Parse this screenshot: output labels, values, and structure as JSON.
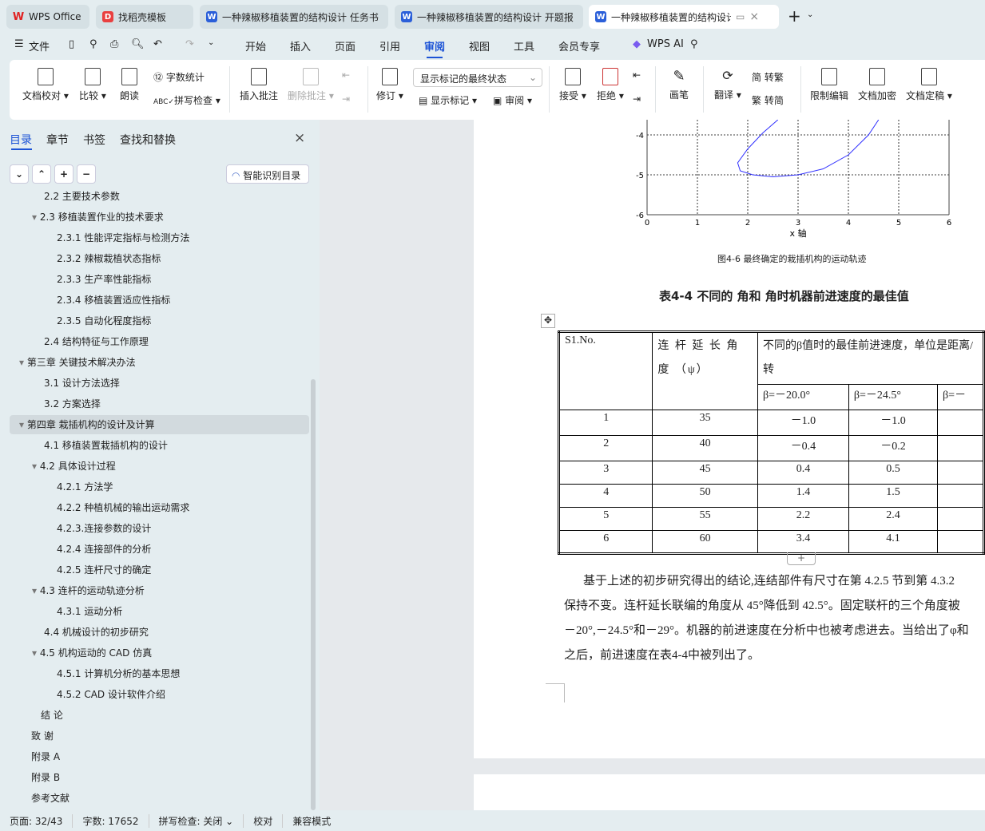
{
  "tabs": [
    {
      "label": "WPS Office",
      "icon": "wps-logo-icon",
      "color": "#e02020"
    },
    {
      "label": "找稻壳模板",
      "icon": "docer-icon",
      "color": "#e94040"
    },
    {
      "label": "一种辣椒移植装置的结构设计 任务书",
      "icon": "word-doc-icon",
      "color": "#2b5fd9"
    },
    {
      "label": "一种辣椒移植装置的结构设计 开题报",
      "icon": "word-doc-icon",
      "color": "#2b5fd9"
    },
    {
      "label": "一种辣椒移植装置的结构设计",
      "icon": "word-doc-icon",
      "color": "#2b5fd9",
      "active": true
    }
  ],
  "menu": {
    "file": "文件",
    "items": [
      "开始",
      "插入",
      "页面",
      "引用",
      "审阅",
      "视图",
      "工具",
      "会员专享"
    ],
    "active": "审阅",
    "ai": "WPS AI"
  },
  "ribbon": {
    "proofread": "文档校对",
    "compare": "比较",
    "read_aloud": "朗读",
    "word_count": "字数统计",
    "spell_check": "拼写检查",
    "insert_comment": "插入批注",
    "delete_comment": "删除批注",
    "revise": "修订",
    "markup_select": "显示标记的最终状态",
    "show_markup": "显示标记",
    "review": "审阅",
    "accept": "接受",
    "reject": "拒绝",
    "pen": "画笔",
    "translate": "翻译",
    "to_traditional": "简 转繁",
    "to_simplified": "繁 转简",
    "restrict_edit": "限制编辑",
    "encrypt": "文档加密",
    "finalize": "文档定稿"
  },
  "sidebar": {
    "tabs": [
      "目录",
      "章节",
      "书签",
      "查找和替换"
    ],
    "active_tab": "目录",
    "smart_toc": "智能识别目录",
    "items": [
      {
        "label": "2.2  主要技术参数",
        "level": 2
      },
      {
        "label": "2.3 移植装置作业的技术要求",
        "level": 2,
        "expanded": true
      },
      {
        "label": "2.3.1  性能评定指标与检测方法",
        "level": 3
      },
      {
        "label": "2.3.2 辣椒栽植状态指标",
        "level": 3
      },
      {
        "label": "2.3.3  生产率性能指标",
        "level": 3
      },
      {
        "label": "2.3.4 移植装置适应性指标",
        "level": 3
      },
      {
        "label": "2.3.5 自动化程度指标",
        "level": 3
      },
      {
        "label": "2.4  结构特征与工作原理",
        "level": 2
      },
      {
        "label": "第三章  关键技术解决办法",
        "level": 1,
        "expanded": true
      },
      {
        "label": "3.1  设计方法选择",
        "level": 2
      },
      {
        "label": "3.2  方案选择",
        "level": 2
      },
      {
        "label": "第四章  栽插机构的设计及计算",
        "level": 1,
        "expanded": true,
        "selected": true
      },
      {
        "label": "4.1  移植装置栽插机构的设计",
        "level": 2
      },
      {
        "label": "4.2  具体设计过程",
        "level": 2,
        "expanded": true
      },
      {
        "label": "4.2.1  方法学",
        "level": 3
      },
      {
        "label": "4.2.2  种植机械的输出运动需求",
        "level": 3
      },
      {
        "label": "4.2.3.连接参数的设计",
        "level": 3
      },
      {
        "label": "4.2.4    连接部件的分析",
        "level": 3
      },
      {
        "label": "4.2.5  连杆尺寸的确定",
        "level": 3
      },
      {
        "label": "4.3  连杆的运动轨迹分析",
        "level": 2,
        "expanded": true
      },
      {
        "label": "4.3.1  运动分析",
        "level": 3
      },
      {
        "label": "4.4  机械设计的初步研究",
        "level": 2
      },
      {
        "label": "4.5  机构运动的 CAD 仿真",
        "level": 2,
        "expanded": true
      },
      {
        "label": "4.5.1  计算机分析的基本思想",
        "level": 3
      },
      {
        "label": "4.5.2 CAD 设计软件介绍",
        "level": 3
      },
      {
        "label": "结    论",
        "level": 1.5
      },
      {
        "label": "致    谢",
        "level": 1
      },
      {
        "label": "附录 A",
        "level": 1
      },
      {
        "label": "附录 B",
        "level": 1
      },
      {
        "label": "参考文献",
        "level": 1
      }
    ]
  },
  "chart_data": {
    "type": "line",
    "xlabel": "x 轴",
    "xlim": [
      0,
      6
    ],
    "ylim": [
      -6,
      -3.62
    ],
    "xticks": [
      "0",
      "1",
      "2",
      "3",
      "4",
      "5",
      "6"
    ],
    "yticks": [
      "-4",
      "-5",
      "-6"
    ],
    "grid": true,
    "color": "#3030ff",
    "x": [
      2.6,
      2.3,
      2.0,
      1.8,
      1.85,
      2.1,
      2.5,
      3.0,
      3.5,
      4.0,
      4.4,
      4.6
    ],
    "y": [
      -3.62,
      -3.95,
      -4.35,
      -4.7,
      -4.9,
      -5.0,
      -5.05,
      -5.0,
      -4.85,
      -4.5,
      -4.0,
      -3.62
    ]
  },
  "figure_caption": "图4-6  最终确定的栽插机构的运动轨迹",
  "table_caption": "表4-4  不同的    角和    角时机器前进速度的最佳值",
  "table": {
    "h_no": "S1.No.",
    "h_angle": "连 杆 延 长 角 度 （ψ）",
    "h_speed": "不同的β值时的最佳前进速度，单位是距离/转",
    "h_betas": [
      "β=－20.0°",
      "β=－24.5°",
      "β=－"
    ],
    "rows": [
      [
        "1",
        "35",
        "－1.0",
        "－1.0",
        ""
      ],
      [
        "2",
        "40",
        "－0.4",
        "－0.2",
        ""
      ],
      [
        "3",
        "45",
        "0.4",
        "0.5",
        ""
      ],
      [
        "4",
        "50",
        "1.4",
        "1.5",
        ""
      ],
      [
        "5",
        "55",
        "2.2",
        "2.4",
        ""
      ],
      [
        "6",
        "60",
        "3.4",
        "4.1",
        ""
      ]
    ]
  },
  "paragraph": [
    "基于上述的初步研究得出的结论,连结部件有尺寸在第  4.2.5  节到第  4.3.2",
    "保持不变。连杆延长联编的角度从  45°降低到  42.5°。固定联杆的三个角度被",
    "－20°,－24.5°和－29°。机器的前进速度在分析中也被考虑进去。当给出了φ和",
    "之后，前进速度在表4-4中被列出了。"
  ],
  "status": {
    "page": "页面: 32/43",
    "words": "字数: 17652",
    "spell": "拼写检查: 关闭",
    "proof": "校对",
    "compat": "兼容模式"
  }
}
